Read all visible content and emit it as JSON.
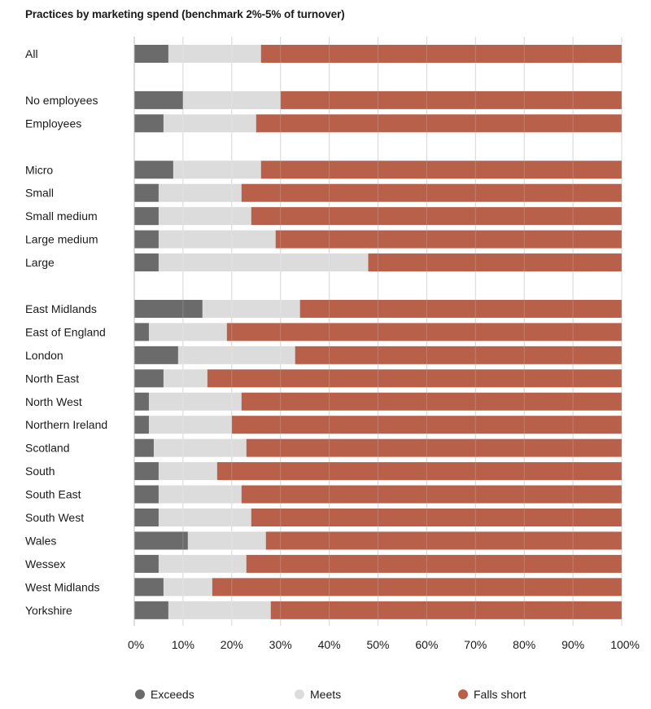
{
  "chart_data": {
    "type": "bar",
    "orientation": "horizontal",
    "stacked": true,
    "title": "Practices by marketing spend (benchmark 2%-5% of turnover)",
    "xlabel": "",
    "ylabel": "",
    "xlim": [
      0,
      100
    ],
    "xticks": [
      "0%",
      "10%",
      "20%",
      "30%",
      "40%",
      "50%",
      "60%",
      "70%",
      "80%",
      "90%",
      "100%"
    ],
    "grid": "vertical",
    "legend_position": "bottom",
    "categories": [
      "All",
      "",
      "No employees",
      "Employees",
      "",
      "Micro",
      "Small",
      "Small medium",
      "Large medium",
      "Large",
      "",
      "East Midlands",
      "East of England",
      "London",
      "North East",
      "North West",
      "Northern Ireland",
      "Scotland",
      "South",
      "South East",
      "South West",
      "Wales",
      "Wessex",
      "West Midlands",
      "Yorkshire"
    ],
    "series": [
      {
        "name": "Exceeds",
        "color": "#6b6b6b",
        "values": [
          7,
          null,
          10,
          6,
          null,
          8,
          5,
          5,
          5,
          5,
          null,
          14,
          3,
          9,
          6,
          3,
          3,
          4,
          5,
          5,
          5,
          11,
          5,
          6,
          7
        ]
      },
      {
        "name": "Meets",
        "color": "#dcdcdc",
        "values": [
          19,
          null,
          20,
          19,
          null,
          18,
          17,
          19,
          24,
          43,
          null,
          20,
          16,
          24,
          9,
          19,
          17,
          19,
          12,
          17,
          19,
          16,
          18,
          10,
          21
        ]
      },
      {
        "name": "Falls short",
        "color": "#b9604a",
        "values": [
          74,
          null,
          70,
          75,
          null,
          74,
          78,
          76,
          71,
          52,
          null,
          66,
          81,
          67,
          85,
          78,
          80,
          77,
          83,
          78,
          76,
          73,
          77,
          84,
          72
        ]
      }
    ]
  }
}
